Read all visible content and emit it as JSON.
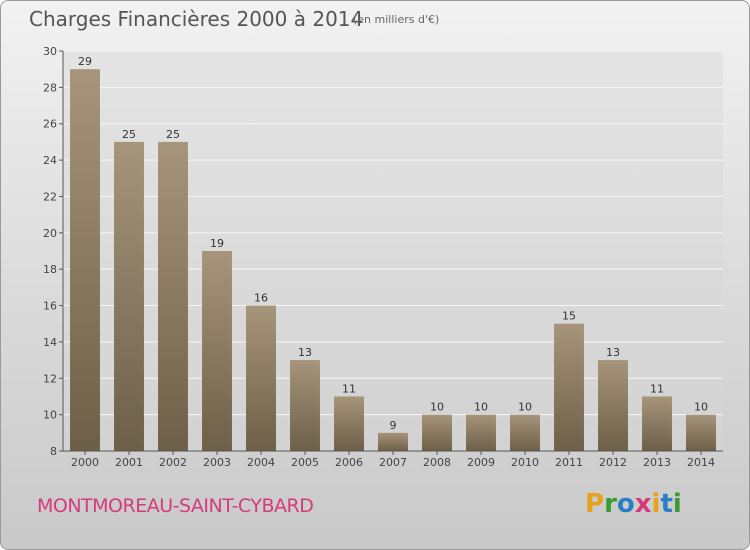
{
  "header": {
    "title": "Charges Financières 2000 à 2014",
    "unit": "(en milliers d'€)"
  },
  "footer": {
    "city": "MONTMOREAU-SAINT-CYBARD",
    "brand_letters": [
      "P",
      "r",
      "o",
      "x",
      "i",
      "t",
      "i"
    ],
    "brand_colors": [
      "#e8a11a",
      "#3b9b33",
      "#2a7fc4",
      "#d63a7e",
      "#e8a11a",
      "#2a7fc4",
      "#3b9b33"
    ]
  },
  "chart_data": {
    "type": "bar",
    "title": "Charges Financières 2000 à 2014",
    "subtitle": "(en milliers d'€)",
    "xlabel": "",
    "ylabel": "",
    "categories": [
      "2000",
      "2001",
      "2002",
      "2003",
      "2004",
      "2005",
      "2006",
      "2007",
      "2008",
      "2009",
      "2010",
      "2011",
      "2012",
      "2013",
      "2014"
    ],
    "values": [
      29,
      25,
      25,
      19,
      16,
      13,
      11,
      9,
      10,
      10,
      10,
      15,
      13,
      11,
      10
    ],
    "ylim": [
      8,
      30
    ],
    "yticks": [
      8,
      10,
      12,
      14,
      16,
      18,
      20,
      22,
      24,
      26,
      28,
      30
    ],
    "grid": true,
    "bar_color": "#8a7a60"
  }
}
